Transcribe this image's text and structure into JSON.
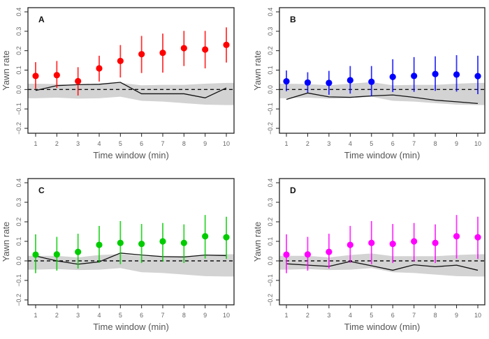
{
  "chart_data": [
    {
      "type": "scatter",
      "panel_label": "A",
      "color": "#ff0000",
      "xlabel": "Time window (min)",
      "ylabel": "Yawn rate",
      "x": [
        1,
        2,
        3,
        4,
        5,
        6,
        7,
        8,
        9,
        10
      ],
      "xticks": [
        "1",
        "2",
        "3",
        "4",
        "5",
        "6",
        "7",
        "8",
        "9",
        "10"
      ],
      "yticks": [
        "0.4",
        "0.3",
        "0.2",
        "0.1",
        "0.0",
        "−0.1",
        "−0.2"
      ],
      "ylim": [
        -0.22,
        0.42
      ],
      "reference_line": 0.0,
      "points": {
        "mean": [
          0.07,
          0.074,
          0.043,
          0.109,
          0.147,
          0.182,
          0.189,
          0.213,
          0.206,
          0.23
        ],
        "ci_upper": [
          0.141,
          0.147,
          0.115,
          0.174,
          0.229,
          0.276,
          0.288,
          0.302,
          0.302,
          0.32
        ],
        "ci_lower": [
          0.004,
          0.008,
          -0.031,
          0.041,
          0.062,
          0.085,
          0.087,
          0.121,
          0.109,
          0.139
        ]
      },
      "null_line": [
        -0.005,
        0.02,
        0.025,
        0.027,
        0.037,
        -0.022,
        -0.022,
        -0.022,
        -0.043,
        0.008
      ],
      "null_band_upper": [
        0.03,
        0.028,
        0.022,
        0.026,
        0.034,
        0.022,
        0.024,
        0.024,
        0.03,
        0.034
      ],
      "null_band_lower": [
        -0.045,
        -0.042,
        -0.047,
        -0.045,
        -0.037,
        -0.058,
        -0.062,
        -0.07,
        -0.078,
        -0.08
      ]
    },
    {
      "type": "scatter",
      "panel_label": "B",
      "color": "#0000ff",
      "xlabel": "Time window (min)",
      "ylabel": "Yawn rate",
      "x": [
        1,
        2,
        3,
        4,
        5,
        6,
        7,
        8,
        9,
        10
      ],
      "xticks": [
        "1",
        "2",
        "3",
        "4",
        "5",
        "6",
        "7",
        "8",
        "9",
        "10"
      ],
      "yticks": [
        "0.4",
        "0.3",
        "0.2",
        "0.1",
        "0.0",
        "−0.1",
        "−0.2"
      ],
      "ylim": [
        -0.22,
        0.42
      ],
      "reference_line": 0.0,
      "points": {
        "mean": [
          0.042,
          0.036,
          0.034,
          0.048,
          0.04,
          0.065,
          0.07,
          0.08,
          0.077,
          0.069
        ],
        "ci_upper": [
          0.098,
          0.089,
          0.096,
          0.121,
          0.121,
          0.156,
          0.167,
          0.171,
          0.177,
          0.174
        ],
        "ci_lower": [
          -0.009,
          -0.016,
          -0.027,
          -0.021,
          -0.035,
          -0.013,
          -0.012,
          -0.007,
          -0.011,
          -0.024
        ]
      },
      "null_line": [
        -0.051,
        -0.018,
        -0.038,
        -0.04,
        -0.033,
        -0.028,
        -0.04,
        -0.055,
        -0.063,
        -0.072
      ],
      "null_band_upper": [
        0.03,
        0.028,
        0.022,
        0.03,
        0.038,
        0.022,
        0.024,
        0.024,
        0.03,
        0.034
      ],
      "null_band_lower": [
        -0.045,
        -0.042,
        -0.047,
        -0.045,
        -0.037,
        -0.058,
        -0.062,
        -0.07,
        -0.078,
        -0.08
      ]
    },
    {
      "type": "scatter",
      "panel_label": "C",
      "color": "#00cc00",
      "xlabel": "Time window (min)",
      "ylabel": "Yawn rate",
      "x": [
        1,
        2,
        3,
        4,
        5,
        6,
        7,
        8,
        9,
        10
      ],
      "xticks": [
        "1",
        "2",
        "3",
        "4",
        "5",
        "6",
        "7",
        "8",
        "9",
        "10"
      ],
      "yticks": [
        "0.4",
        "0.3",
        "0.2",
        "0.1",
        "0.0",
        "−0.1",
        "−0.2"
      ],
      "ylim": [
        -0.22,
        0.42
      ],
      "reference_line": 0.0,
      "points": {
        "mean": [
          0.032,
          0.033,
          0.046,
          0.082,
          0.092,
          0.087,
          0.1,
          0.092,
          0.126,
          0.121
        ],
        "ci_upper": [
          0.136,
          0.123,
          0.139,
          0.179,
          0.204,
          0.189,
          0.194,
          0.187,
          0.235,
          0.226
        ],
        "ci_lower": [
          -0.063,
          -0.05,
          -0.039,
          -0.01,
          -0.017,
          -0.011,
          -0.004,
          -0.011,
          0.012,
          0.01
        ]
      },
      "null_line": [
        0.025,
        0.0,
        -0.017,
        -0.005,
        0.04,
        0.03,
        0.022,
        0.02,
        0.03,
        0.027
      ],
      "null_band_upper": [
        0.026,
        0.026,
        0.018,
        0.03,
        0.035,
        0.024,
        0.024,
        0.024,
        0.03,
        0.034
      ],
      "null_band_lower": [
        -0.045,
        -0.042,
        -0.047,
        -0.045,
        -0.037,
        -0.058,
        -0.062,
        -0.07,
        -0.078,
        -0.08
      ]
    },
    {
      "type": "scatter",
      "panel_label": "D",
      "color": "#ff00ff",
      "xlabel": "Time window (min)",
      "ylabel": "Yawn rate",
      "x": [
        1,
        2,
        3,
        4,
        5,
        6,
        7,
        8,
        9,
        10
      ],
      "xticks": [
        "1",
        "2",
        "3",
        "4",
        "5",
        "6",
        "7",
        "8",
        "9",
        "10"
      ],
      "yticks": [
        "0.4",
        "0.3",
        "0.2",
        "0.1",
        "0.0",
        "−0.1",
        "−0.2"
      ],
      "ylim": [
        -0.22,
        0.42
      ],
      "reference_line": 0.0,
      "points": {
        "mean": [
          0.032,
          0.033,
          0.046,
          0.082,
          0.092,
          0.087,
          0.1,
          0.092,
          0.126,
          0.121
        ],
        "ci_upper": [
          0.136,
          0.123,
          0.139,
          0.179,
          0.204,
          0.189,
          0.194,
          0.187,
          0.235,
          0.226
        ],
        "ci_lower": [
          -0.063,
          -0.05,
          -0.039,
          -0.01,
          -0.017,
          -0.011,
          -0.004,
          -0.011,
          0.012,
          0.01
        ]
      },
      "null_line": [
        -0.015,
        -0.022,
        -0.028,
        -0.003,
        -0.025,
        -0.048,
        -0.02,
        -0.03,
        -0.022,
        -0.048
      ],
      "null_band_upper": [
        0.026,
        0.026,
        0.018,
        0.03,
        0.038,
        0.024,
        0.024,
        0.024,
        0.03,
        0.034
      ],
      "null_band_lower": [
        -0.045,
        -0.042,
        -0.047,
        -0.045,
        -0.037,
        -0.058,
        -0.062,
        -0.07,
        -0.078,
        -0.08
      ]
    }
  ],
  "colors": {
    "null_band": "#d3d3d3",
    "null_line": "#111111",
    "axis": "#222222"
  }
}
